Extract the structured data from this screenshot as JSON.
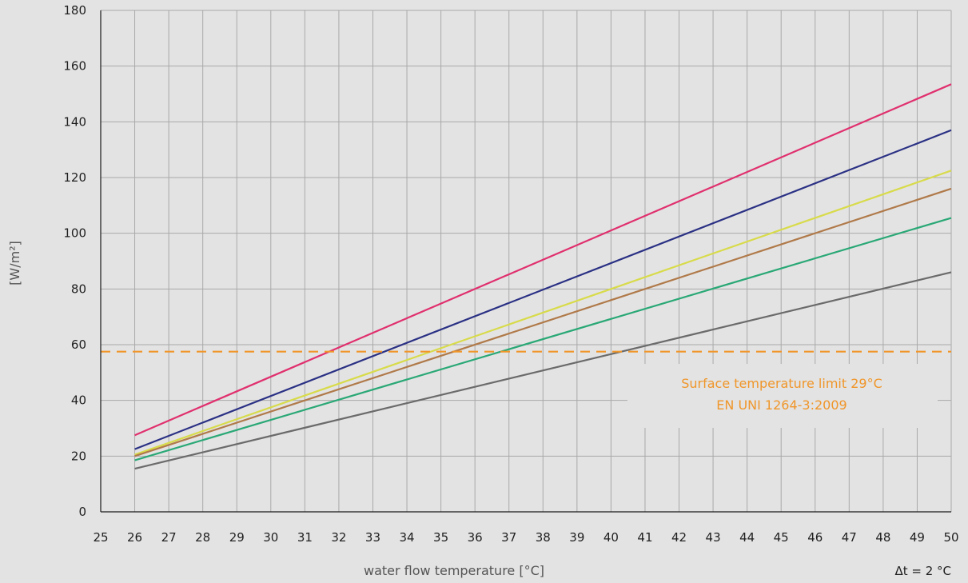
{
  "chart_data": {
    "type": "line",
    "title": "",
    "xlabel": "water flow temperature [°C]",
    "ylabel": "[W/m²]",
    "xlim": [
      25,
      50
    ],
    "ylim": [
      0,
      180
    ],
    "xticks": [
      25,
      26,
      27,
      28,
      29,
      30,
      31,
      32,
      33,
      34,
      35,
      36,
      37,
      38,
      39,
      40,
      41,
      42,
      43,
      44,
      45,
      46,
      47,
      48,
      49,
      50
    ],
    "yticks": [
      0,
      20,
      40,
      60,
      80,
      100,
      120,
      140,
      160,
      180
    ],
    "grid": true,
    "series": [
      {
        "color": "#e0306e",
        "x": [
          26,
          50
        ],
        "y": [
          27.5,
          153.5
        ]
      },
      {
        "color": "#2b3184",
        "x": [
          26,
          50
        ],
        "y": [
          22.5,
          137
        ]
      },
      {
        "color": "#d8db4a",
        "x": [
          26,
          50
        ],
        "y": [
          20.5,
          122.5
        ]
      },
      {
        "color": "#b07a4a",
        "x": [
          26,
          50
        ],
        "y": [
          20,
          116
        ]
      },
      {
        "color": "#2aa876",
        "x": [
          26,
          50
        ],
        "y": [
          18.5,
          105.5
        ]
      },
      {
        "color": "#6b6b6b",
        "x": [
          26,
          50
        ],
        "y": [
          15.5,
          86
        ]
      }
    ],
    "reference_line": {
      "y": 57.5,
      "color": "#f0962a",
      "style": "dashed",
      "label_line1": "Surface temperature limit 29°C",
      "label_line2": "EN UNI 1264-3:2009"
    },
    "footnote": "Δt = 2 °C"
  }
}
